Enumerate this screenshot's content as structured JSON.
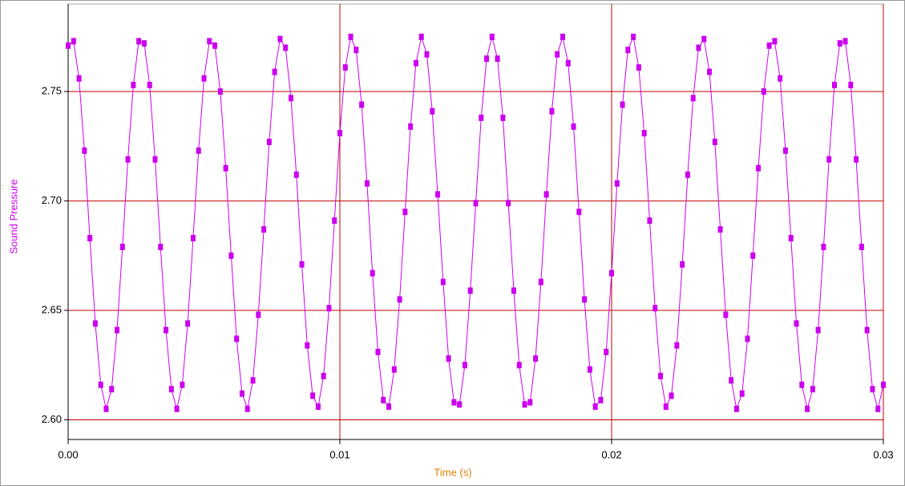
{
  "chart_data": {
    "type": "line",
    "x_label": "Time (s)",
    "y_label": "Sound Pressure",
    "x": [
      0,
      0.0002,
      0.0004,
      0.0006,
      0.0008,
      0.001,
      0.0012,
      0.0014,
      0.0016,
      0.0018,
      0.002,
      0.0022,
      0.0024,
      0.0026,
      0.0028,
      0.003,
      0.0032,
      0.0034,
      0.0036,
      0.0038,
      0.004,
      0.0042,
      0.0044,
      0.0046,
      0.0048,
      0.005,
      0.0052,
      0.0054,
      0.0056,
      0.0058,
      0.006,
      0.0062,
      0.0064,
      0.0066,
      0.0068,
      0.007,
      0.0072,
      0.0074,
      0.0076,
      0.0078,
      0.008,
      0.0082,
      0.0084,
      0.0086,
      0.0088,
      0.009,
      0.0092,
      0.0094,
      0.0096,
      0.0098,
      0.01,
      0.0102,
      0.0104,
      0.0106,
      0.0108,
      0.011,
      0.0112,
      0.0114,
      0.0116,
      0.0118,
      0.012,
      0.0122,
      0.0124,
      0.0126,
      0.0128,
      0.013,
      0.0132,
      0.0134,
      0.0136,
      0.0138,
      0.014,
      0.0142,
      0.0144,
      0.0146,
      0.0148,
      0.015,
      0.0152,
      0.0154,
      0.0156,
      0.0158,
      0.016,
      0.0162,
      0.0164,
      0.0166,
      0.0168,
      0.017,
      0.0172,
      0.0174,
      0.0176,
      0.0178,
      0.018,
      0.0182,
      0.0184,
      0.0186,
      0.0188,
      0.019,
      0.0192,
      0.0194,
      0.0196,
      0.0198,
      0.02,
      0.0202,
      0.0204,
      0.0206,
      0.0208,
      0.021,
      0.0212,
      0.0214,
      0.0216,
      0.0218,
      0.022,
      0.0222,
      0.0224,
      0.0226,
      0.0228,
      0.023,
      0.0232,
      0.0234,
      0.0236,
      0.0238,
      0.024,
      0.0242,
      0.0244,
      0.0246,
      0.0248,
      0.025,
      0.0252,
      0.0254,
      0.0256,
      0.0258,
      0.026,
      0.0262,
      0.0264,
      0.0266,
      0.0268,
      0.027,
      0.0272,
      0.0274,
      0.0276,
      0.0278,
      0.028,
      0.0282,
      0.0284,
      0.0286,
      0.0288,
      0.029,
      0.0292,
      0.0294,
      0.0296,
      0.0298,
      0.03
    ],
    "series": [
      {
        "color": "#cc00ee",
        "values": [
          2.771,
          2.773,
          2.756,
          2.723,
          2.683,
          2.644,
          2.616,
          2.605,
          2.614,
          2.641,
          2.679,
          2.719,
          2.753,
          2.773,
          2.772,
          2.753,
          2.719,
          2.679,
          2.641,
          2.614,
          2.605,
          2.616,
          2.644,
          2.683,
          2.723,
          2.756,
          2.773,
          2.771,
          2.75,
          2.715,
          2.675,
          2.637,
          2.612,
          2.605,
          2.618,
          2.648,
          2.687,
          2.727,
          2.759,
          2.774,
          2.77,
          2.747,
          2.712,
          2.671,
          2.634,
          2.611,
          2.606,
          2.62,
          2.651,
          2.691,
          2.731,
          2.761,
          2.775,
          2.769,
          2.744,
          2.708,
          2.667,
          2.631,
          2.609,
          2.606,
          2.623,
          2.655,
          2.695,
          2.734,
          2.763,
          2.775,
          2.767,
          2.741,
          2.703,
          2.663,
          2.628,
          2.608,
          2.607,
          2.625,
          2.659,
          2.699,
          2.738,
          2.765,
          2.775,
          2.765,
          2.738,
          2.699,
          2.659,
          2.625,
          2.607,
          2.608,
          2.628,
          2.663,
          2.703,
          2.741,
          2.767,
          2.775,
          2.763,
          2.734,
          2.695,
          2.655,
          2.623,
          2.606,
          2.609,
          2.631,
          2.667,
          2.708,
          2.744,
          2.769,
          2.775,
          2.761,
          2.731,
          2.691,
          2.651,
          2.62,
          2.606,
          2.611,
          2.634,
          2.671,
          2.712,
          2.747,
          2.77,
          2.774,
          2.759,
          2.727,
          2.687,
          2.648,
          2.618,
          2.605,
          2.612,
          2.637,
          2.675,
          2.715,
          2.75,
          2.771,
          2.773,
          2.756,
          2.723,
          2.683,
          2.644,
          2.616,
          2.605,
          2.614,
          2.641,
          2.679,
          2.719,
          2.753,
          2.772,
          2.773,
          2.753,
          2.719,
          2.679,
          2.641,
          2.614,
          2.605,
          2.616
        ]
      }
    ],
    "xlim": [
      0,
      0.03
    ],
    "ylim": [
      2.591,
      2.79
    ],
    "xticks": [
      {
        "value": 0,
        "label": "0.00"
      },
      0.01,
      0.02,
      0.03
    ],
    "yticks": [
      {
        "value": 2.6,
        "label": "2.60"
      },
      2.65,
      {
        "value": 2.7,
        "label": "2.70"
      },
      2.75
    ],
    "grid": true,
    "grid_color": "#c00000"
  }
}
